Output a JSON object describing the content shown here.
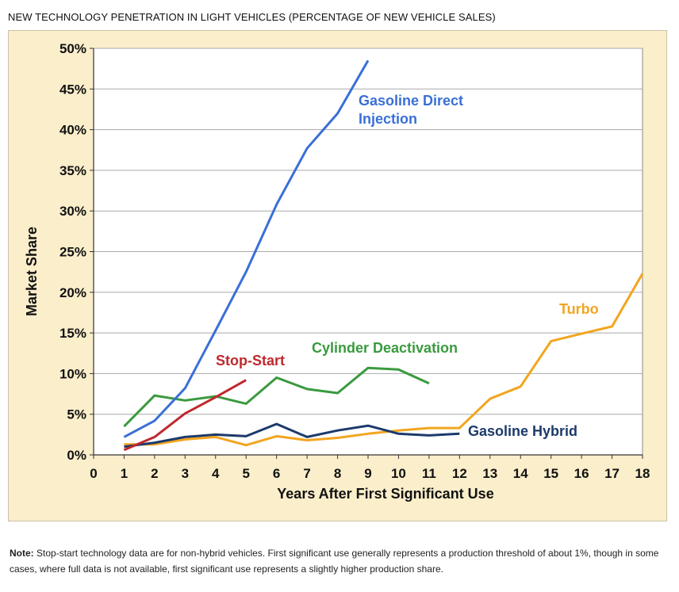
{
  "page": {
    "title": "NEW TECHNOLOGY PENETRATION IN LIGHT VEHICLES (PERCENTAGE OF NEW VEHICLE SALES)",
    "note_label": "Note:",
    "note_text": " Stop-start technology data are for non-hybrid vehicles. First significant use generally represents a production threshold of about 1%, though in some cases, where full data is not available, first significant use represents a slightly higher production share."
  },
  "chart_data": {
    "type": "line",
    "title": "",
    "xlabel": "Years After First Significant Use",
    "ylabel": "Market Share",
    "xlim": [
      0,
      18
    ],
    "ylim": [
      0,
      50
    ],
    "x_ticks": [
      0,
      1,
      2,
      3,
      4,
      5,
      6,
      7,
      8,
      9,
      10,
      11,
      12,
      13,
      14,
      15,
      16,
      17,
      18
    ],
    "y_ticks": [
      0,
      5,
      10,
      15,
      20,
      25,
      30,
      35,
      40,
      45,
      50
    ],
    "y_tick_format": "%",
    "grid": "horizontal",
    "legend": "inline labels",
    "series": [
      {
        "name": "Gasoline Direct Injection",
        "label_lines": [
          "Gasoline Direct",
          "Injection"
        ],
        "color": "#3a6fd8",
        "x": [
          1,
          2,
          3,
          4,
          5,
          6,
          7,
          8,
          9
        ],
        "values": [
          2.2,
          4.2,
          8.2,
          15.3,
          22.5,
          30.8,
          37.7,
          42.0,
          48.5
        ]
      },
      {
        "name": "Stop-Start",
        "label_lines": [
          "Stop-Start"
        ],
        "color": "#c0282d",
        "x": [
          1,
          2,
          3,
          4,
          5
        ],
        "values": [
          0.6,
          2.2,
          5.1,
          7.1,
          9.2
        ]
      },
      {
        "name": "Cylinder Deactivation",
        "label_lines": [
          "Cylinder Deactivation"
        ],
        "color": "#3a9a3e",
        "x": [
          1,
          2,
          3,
          4,
          5,
          6,
          7,
          8,
          9,
          10,
          11
        ],
        "values": [
          3.5,
          7.3,
          6.7,
          7.2,
          6.3,
          9.5,
          8.1,
          7.6,
          10.7,
          10.5,
          8.8
        ]
      },
      {
        "name": "Gasoline Hybrid",
        "label_lines": [
          "Gasoline Hybrid"
        ],
        "color": "#1c3a6b",
        "x": [
          1,
          2,
          3,
          4,
          5,
          6,
          7,
          8,
          9,
          10,
          11,
          12
        ],
        "values": [
          1.0,
          1.5,
          2.2,
          2.5,
          2.3,
          3.8,
          2.2,
          3.0,
          3.6,
          2.6,
          2.4,
          2.6
        ]
      },
      {
        "name": "Turbo",
        "label_lines": [
          "Turbo"
        ],
        "color": "#f2a51f",
        "x": [
          1,
          2,
          3,
          4,
          5,
          6,
          7,
          8,
          9,
          10,
          11,
          12,
          13,
          14,
          15,
          16,
          17,
          18
        ],
        "values": [
          1.3,
          1.3,
          1.9,
          2.2,
          1.2,
          2.3,
          1.8,
          2.1,
          2.6,
          3.0,
          3.3,
          3.3,
          6.9,
          8.4,
          14.0,
          14.9,
          15.8,
          22.3
        ]
      }
    ]
  }
}
